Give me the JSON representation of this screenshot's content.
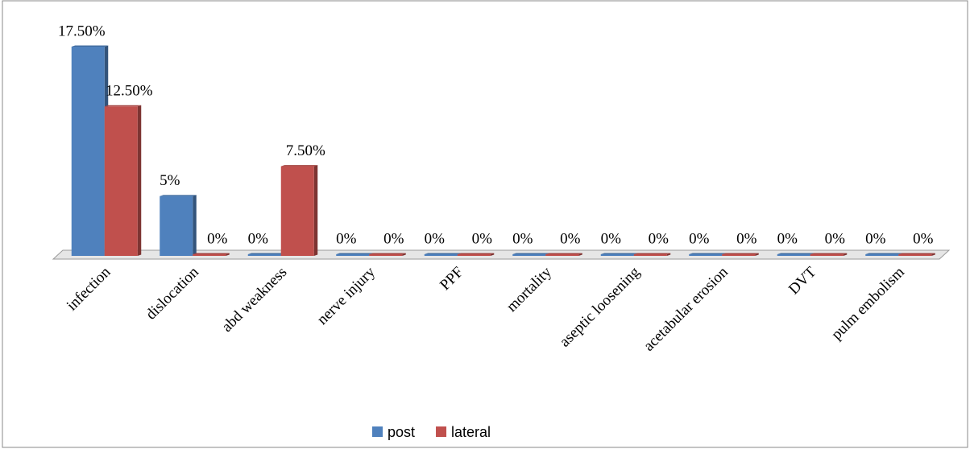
{
  "chart_data": {
    "type": "bar3d",
    "categories": [
      "infection",
      "dislocation",
      "abd weakness",
      "nerve injury",
      "PPF",
      "mortality",
      "aseptic loosening",
      "acetabular erosion",
      "DVT",
      "pulm embolism"
    ],
    "series": [
      {
        "name": "post",
        "color": "#4f81bd",
        "values": [
          17.5,
          5,
          0,
          0,
          0,
          0,
          0,
          0,
          0,
          0
        ],
        "value_labels": [
          "17.50%",
          "5%",
          "0%",
          "0%",
          "0%",
          "0%",
          "0%",
          "0%",
          "0%",
          "0%"
        ]
      },
      {
        "name": "lateral",
        "color": "#c0504d",
        "values": [
          12.5,
          0,
          7.5,
          0,
          0,
          0,
          0,
          0,
          0,
          0
        ],
        "value_labels": [
          "12.50%",
          "0%",
          "7.50%",
          "0%",
          "0%",
          "0%",
          "0%",
          "0%",
          "0%",
          "0%"
        ]
      }
    ],
    "legend": "bottom"
  }
}
